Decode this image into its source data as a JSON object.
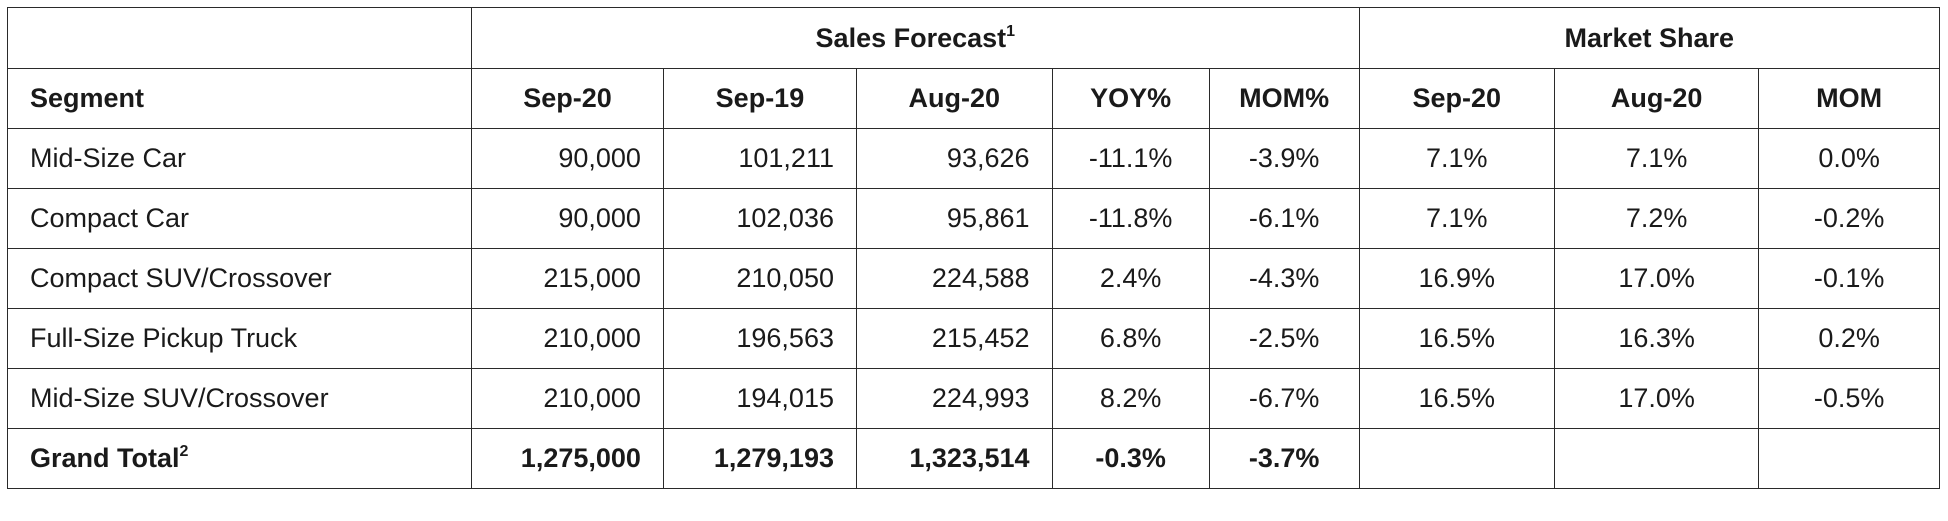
{
  "header": {
    "sales_forecast": "Sales Forecast",
    "sales_forecast_note": "1",
    "market_share": "Market Share"
  },
  "columns": {
    "segment": "Segment",
    "sales": [
      "Sep-20",
      "Sep-19",
      "Aug-20",
      "YOY%",
      "MOM%"
    ],
    "share": [
      "Sep-20",
      "Aug-20",
      "MOM"
    ]
  },
  "rows": [
    {
      "segment": "Mid-Size Car",
      "sales": [
        "90,000",
        "101,211",
        "93,626",
        "-11.1%",
        "-3.9%"
      ],
      "share": [
        "7.1%",
        "7.1%",
        "0.0%"
      ]
    },
    {
      "segment": "Compact Car",
      "sales": [
        "90,000",
        "102,036",
        "95,861",
        "-11.8%",
        "-6.1%"
      ],
      "share": [
        "7.1%",
        "7.2%",
        "-0.2%"
      ]
    },
    {
      "segment": "Compact SUV/Crossover",
      "sales": [
        "215,000",
        "210,050",
        "224,588",
        "2.4%",
        "-4.3%"
      ],
      "share": [
        "16.9%",
        "17.0%",
        "-0.1%"
      ]
    },
    {
      "segment": "Full-Size Pickup Truck",
      "sales": [
        "210,000",
        "196,563",
        "215,452",
        "6.8%",
        "-2.5%"
      ],
      "share": [
        "16.5%",
        "16.3%",
        "0.2%"
      ]
    },
    {
      "segment": "Mid-Size SUV/Crossover",
      "sales": [
        "210,000",
        "194,015",
        "224,993",
        "8.2%",
        "-6.7%"
      ],
      "share": [
        "16.5%",
        "17.0%",
        "-0.5%"
      ]
    }
  ],
  "total": {
    "label": "Grand Total",
    "label_note": "2",
    "sales": [
      "1,275,000",
      "1,279,193",
      "1,323,514",
      "-0.3%",
      "-3.7%"
    ],
    "share": [
      "",
      "",
      ""
    ]
  }
}
